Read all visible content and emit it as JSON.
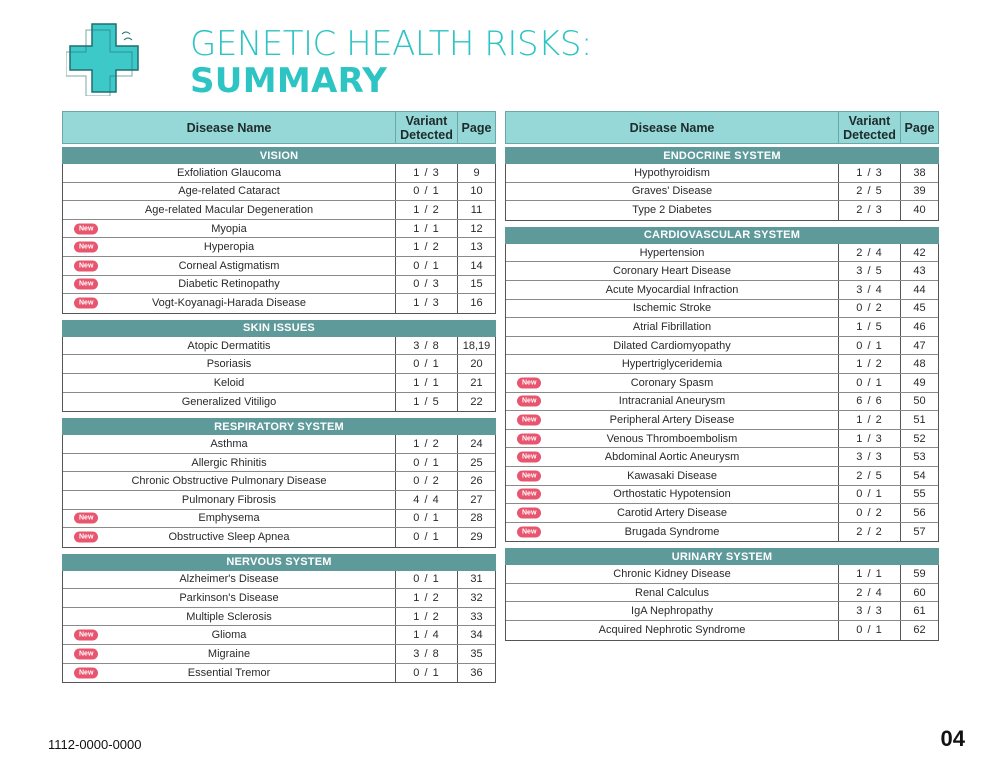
{
  "title": {
    "line1": "GENETIC HEALTH RISKS:",
    "line2": "SUMMARY"
  },
  "header": {
    "name": "Disease Name",
    "variant": "Variant Detected",
    "page": "Page"
  },
  "badge_label": "New",
  "colors": {
    "accent": "#2ec4c4",
    "header_bg": "#96d7d8",
    "section_bg": "#5f9a9b",
    "badge": "#e8556f"
  },
  "left_sections": [
    {
      "title": "VISION",
      "rows": [
        {
          "name": "Exfoliation Glaucoma",
          "variant": "1 / 3",
          "page": "9",
          "new": false
        },
        {
          "name": "Age-related Cataract",
          "variant": "0 / 1",
          "page": "10",
          "new": false
        },
        {
          "name": "Age-related Macular Degeneration",
          "variant": "1 / 2",
          "page": "11",
          "new": false
        },
        {
          "name": "Myopia",
          "variant": "1 / 1",
          "page": "12",
          "new": true
        },
        {
          "name": "Hyperopia",
          "variant": "1 / 2",
          "page": "13",
          "new": true
        },
        {
          "name": "Corneal Astigmatism",
          "variant": "0 / 1",
          "page": "14",
          "new": true
        },
        {
          "name": "Diabetic Retinopathy",
          "variant": "0 / 3",
          "page": "15",
          "new": true
        },
        {
          "name": "Vogt-Koyanagi-Harada Disease",
          "variant": "1 / 3",
          "page": "16",
          "new": true
        }
      ]
    },
    {
      "title": "SKIN ISSUES",
      "rows": [
        {
          "name": "Atopic Dermatitis",
          "variant": "3 / 8",
          "page": "18,19",
          "new": false
        },
        {
          "name": "Psoriasis",
          "variant": "0 / 1",
          "page": "20",
          "new": false
        },
        {
          "name": "Keloid",
          "variant": "1 / 1",
          "page": "21",
          "new": false
        },
        {
          "name": "Generalized Vitiligo",
          "variant": "1 / 5",
          "page": "22",
          "new": false
        }
      ]
    },
    {
      "title": "RESPIRATORY SYSTEM",
      "rows": [
        {
          "name": "Asthma",
          "variant": "1 / 2",
          "page": "24",
          "new": false
        },
        {
          "name": "Allergic Rhinitis",
          "variant": "0 / 1",
          "page": "25",
          "new": false
        },
        {
          "name": "Chronic Obstructive Pulmonary Disease",
          "variant": "0 / 2",
          "page": "26",
          "new": false
        },
        {
          "name": "Pulmonary Fibrosis",
          "variant": "4 / 4",
          "page": "27",
          "new": false
        },
        {
          "name": "Emphysema",
          "variant": "0 / 1",
          "page": "28",
          "new": true
        },
        {
          "name": "Obstructive Sleep Apnea",
          "variant": "0 / 1",
          "page": "29",
          "new": true
        }
      ]
    },
    {
      "title": "NERVOUS SYSTEM",
      "rows": [
        {
          "name": "Alzheimer's Disease",
          "variant": "0 / 1",
          "page": "31",
          "new": false
        },
        {
          "name": "Parkinson's Disease",
          "variant": "1 / 2",
          "page": "32",
          "new": false
        },
        {
          "name": "Multiple Sclerosis",
          "variant": "1 / 2",
          "page": "33",
          "new": false
        },
        {
          "name": "Glioma",
          "variant": "1 / 4",
          "page": "34",
          "new": true
        },
        {
          "name": "Migraine",
          "variant": "3 / 8",
          "page": "35",
          "new": true
        },
        {
          "name": "Essential Tremor",
          "variant": "0 / 1",
          "page": "36",
          "new": true
        }
      ]
    }
  ],
  "right_sections": [
    {
      "title": "ENDOCRINE SYSTEM",
      "rows": [
        {
          "name": "Hypothyroidism",
          "variant": "1 / 3",
          "page": "38",
          "new": false
        },
        {
          "name": "Graves' Disease",
          "variant": "2 / 5",
          "page": "39",
          "new": false
        },
        {
          "name": "Type 2 Diabetes",
          "variant": "2 / 3",
          "page": "40",
          "new": false
        }
      ]
    },
    {
      "title": "CARDIOVASCULAR SYSTEM",
      "rows": [
        {
          "name": "Hypertension",
          "variant": "2 / 4",
          "page": "42",
          "new": false
        },
        {
          "name": "Coronary Heart Disease",
          "variant": "3 / 5",
          "page": "43",
          "new": false
        },
        {
          "name": "Acute Myocardial Infraction",
          "variant": "3 / 4",
          "page": "44",
          "new": false
        },
        {
          "name": "Ischemic Stroke",
          "variant": "0 / 2",
          "page": "45",
          "new": false
        },
        {
          "name": "Atrial Fibrillation",
          "variant": "1 / 5",
          "page": "46",
          "new": false
        },
        {
          "name": "Dilated Cardiomyopathy",
          "variant": "0 / 1",
          "page": "47",
          "new": false
        },
        {
          "name": "Hypertriglyceridemia",
          "variant": "1 / 2",
          "page": "48",
          "new": false
        },
        {
          "name": "Coronary Spasm",
          "variant": "0 / 1",
          "page": "49",
          "new": true
        },
        {
          "name": "Intracranial Aneurysm",
          "variant": "6 / 6",
          "page": "50",
          "new": true
        },
        {
          "name": "Peripheral Artery Disease",
          "variant": "1 / 2",
          "page": "51",
          "new": true
        },
        {
          "name": "Venous Thromboembolism",
          "variant": "1 / 3",
          "page": "52",
          "new": true
        },
        {
          "name": "Abdominal Aortic Aneurysm",
          "variant": "3 / 3",
          "page": "53",
          "new": true
        },
        {
          "name": "Kawasaki Disease",
          "variant": "2 / 5",
          "page": "54",
          "new": true
        },
        {
          "name": "Orthostatic Hypotension",
          "variant": "0 / 1",
          "page": "55",
          "new": true
        },
        {
          "name": "Carotid Artery Disease",
          "variant": "0 / 2",
          "page": "56",
          "new": true
        },
        {
          "name": "Brugada Syndrome",
          "variant": "2 / 2",
          "page": "57",
          "new": true
        }
      ]
    },
    {
      "title": "URINARY SYSTEM",
      "rows": [
        {
          "name": "Chronic Kidney Disease",
          "variant": "1 / 1",
          "page": "59",
          "new": false
        },
        {
          "name": "Renal Calculus",
          "variant": "2 / 4",
          "page": "60",
          "new": false
        },
        {
          "name": "IgA Nephropathy",
          "variant": "3 / 3",
          "page": "61",
          "new": false
        },
        {
          "name": "Acquired Nephrotic Syndrome",
          "variant": "0 / 1",
          "page": "62",
          "new": false
        }
      ]
    }
  ],
  "footer": {
    "code": "1112-0000-0000",
    "page_number": "04"
  }
}
